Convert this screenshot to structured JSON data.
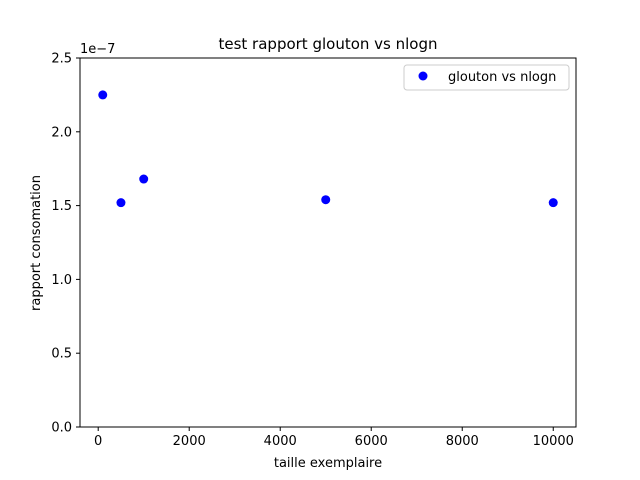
{
  "chart_data": {
    "type": "scatter",
    "title": "test rapport glouton vs nlogn",
    "xlabel": "taille exemplaire",
    "ylabel": "rapport consomation",
    "y_offset_label": "1e−7",
    "xlim": [
      -400,
      10500
    ],
    "ylim": [
      0,
      2.5e-07
    ],
    "xticks": [
      0,
      2000,
      4000,
      6000,
      8000,
      10000
    ],
    "xtick_labels": [
      "0",
      "2000",
      "4000",
      "6000",
      "8000",
      "10000"
    ],
    "yticks": [
      0,
      5e-08,
      1e-07,
      1.5e-07,
      2e-07,
      2.5e-07
    ],
    "ytick_labels": [
      "0.0",
      "0.5",
      "1.0",
      "1.5",
      "2.0",
      "2.5"
    ],
    "grid": false,
    "legend_position": "top-right",
    "series": [
      {
        "name": "glouton vs nlogn",
        "color": "#0000ff",
        "marker": "circle",
        "x": [
          100,
          500,
          1000,
          5000,
          10000
        ],
        "y": [
          2.25e-07,
          1.52e-07,
          1.68e-07,
          1.54e-07,
          1.52e-07
        ]
      }
    ]
  }
}
